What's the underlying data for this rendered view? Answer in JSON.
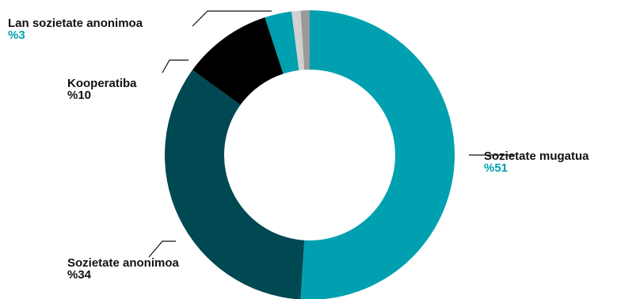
{
  "chart_data": {
    "type": "pie",
    "title": "",
    "series": [
      {
        "name": "Sozietate mugatua",
        "label": "%51",
        "value": 51,
        "color": "#00a0b0"
      },
      {
        "name": "Sozietate anonimoa",
        "label": "%34",
        "value": 34,
        "color": "#004852"
      },
      {
        "name": "Kooperatiba",
        "label": "%10",
        "value": 10,
        "color": "#000000"
      },
      {
        "name": "Lan sozietate anonimoa",
        "label": "%3",
        "value": 3,
        "color": "#00a0b0"
      },
      {
        "value": 1,
        "color": "#d1d1d1"
      },
      {
        "value": 1,
        "color": "#9a9a9a"
      }
    ],
    "label_colors": {
      "dark": "#111111",
      "accent": "#00a0b0"
    }
  }
}
